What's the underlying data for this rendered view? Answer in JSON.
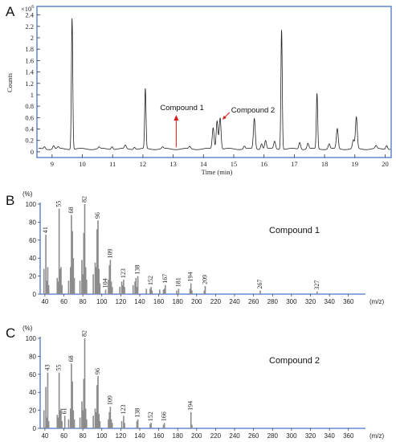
{
  "chart_data": [
    {
      "panel": "A",
      "type": "line",
      "multiplier": "×10",
      "multiplier_exp": "6",
      "xlabel": "Time (min)",
      "ylabel": "Counts",
      "xlim": [
        8.5,
        20.2
      ],
      "ylim": [
        -0.1,
        2.55
      ],
      "xticks": [
        "9",
        "10",
        "11",
        "12",
        "13",
        "14",
        "15",
        "16",
        "17",
        "18",
        "19",
        "20"
      ],
      "yticks": [
        "0",
        "0.2",
        "0.4",
        "0.6",
        "0.8",
        "1",
        "1.2",
        "1.4",
        "1.6",
        "1.8",
        "2",
        "2.2",
        "2.4"
      ],
      "baseline": 0.05,
      "peaks": [
        {
          "x": 8.75,
          "y": 0.09
        },
        {
          "x": 9.05,
          "y": 0.11
        },
        {
          "x": 9.2,
          "y": 0.08
        },
        {
          "x": 9.66,
          "y": 2.35
        },
        {
          "x": 10.55,
          "y": 0.08
        },
        {
          "x": 10.98,
          "y": 0.1
        },
        {
          "x": 11.42,
          "y": 0.11
        },
        {
          "x": 11.72,
          "y": 0.09
        },
        {
          "x": 12.08,
          "y": 1.1
        },
        {
          "x": 12.65,
          "y": 0.08
        },
        {
          "x": 13.55,
          "y": 0.09
        },
        {
          "x": 14.32,
          "y": 0.42
        },
        {
          "x": 14.45,
          "y": 0.55
        },
        {
          "x": 14.55,
          "y": 0.6
        },
        {
          "x": 15.35,
          "y": 0.1
        },
        {
          "x": 15.68,
          "y": 0.58
        },
        {
          "x": 15.92,
          "y": 0.15
        },
        {
          "x": 16.05,
          "y": 0.2
        },
        {
          "x": 16.35,
          "y": 0.18
        },
        {
          "x": 16.58,
          "y": 2.15
        },
        {
          "x": 17.18,
          "y": 0.17
        },
        {
          "x": 17.45,
          "y": 0.15
        },
        {
          "x": 17.75,
          "y": 1.02
        },
        {
          "x": 18.15,
          "y": 0.14
        },
        {
          "x": 18.42,
          "y": 0.4
        },
        {
          "x": 18.95,
          "y": 0.2
        },
        {
          "x": 19.05,
          "y": 0.6
        },
        {
          "x": 19.7,
          "y": 0.1
        },
        {
          "x": 20.05,
          "y": 0.12
        }
      ],
      "annotations": [
        {
          "text": "Compound 1",
          "x": 13.1,
          "y": 0.05
        },
        {
          "text": "Compound 2",
          "x": 14.65,
          "y": 0.55
        }
      ]
    },
    {
      "panel": "B",
      "type": "bar",
      "title": "Compound 1",
      "ylabel": "(%)",
      "xlabel": "(m/z)",
      "xlim": [
        35,
        378
      ],
      "ylim": [
        0,
        100
      ],
      "xticks": [
        "40",
        "60",
        "80",
        "100",
        "120",
        "140",
        "160",
        "180",
        "200",
        "220",
        "240",
        "260",
        "280",
        "300",
        "320",
        "340",
        "360"
      ],
      "yticks": [
        "0",
        "20",
        "40",
        "60",
        "80",
        "100"
      ],
      "mz": [
        39,
        41,
        42,
        43,
        44,
        53,
        54,
        55,
        56,
        57,
        58,
        65,
        67,
        68,
        69,
        70,
        71,
        77,
        79,
        80,
        81,
        82,
        83,
        84,
        91,
        93,
        94,
        95,
        96,
        97,
        98,
        104,
        107,
        108,
        109,
        110,
        111,
        119,
        121,
        122,
        123,
        124,
        133,
        135,
        136,
        137,
        138,
        147,
        151,
        152,
        153,
        161,
        165,
        166,
        167,
        179,
        181,
        193,
        194,
        195,
        208,
        209,
        267,
        327
      ],
      "intensity": [
        28,
        66,
        15,
        30,
        10,
        18,
        14,
        95,
        28,
        30,
        10,
        15,
        30,
        88,
        70,
        40,
        18,
        15,
        38,
        22,
        68,
        100,
        30,
        16,
        22,
        35,
        30,
        72,
        82,
        28,
        12,
        5,
        16,
        32,
        38,
        14,
        8,
        8,
        14,
        10,
        16,
        8,
        10,
        14,
        18,
        8,
        20,
        6,
        6,
        8,
        4,
        5,
        5,
        6,
        10,
        4,
        6,
        6,
        12,
        4,
        4,
        9,
        4,
        3
      ],
      "peak_labels": [
        {
          "mz": 41,
          "label": "41"
        },
        {
          "mz": 55,
          "label": "55"
        },
        {
          "mz": 68,
          "label": "68"
        },
        {
          "mz": 82,
          "label": "82"
        },
        {
          "mz": 96,
          "label": "96"
        },
        {
          "mz": 104,
          "label": "104"
        },
        {
          "mz": 109,
          "label": "109"
        },
        {
          "mz": 123,
          "label": "123"
        },
        {
          "mz": 138,
          "label": "138"
        },
        {
          "mz": 152,
          "label": "152"
        },
        {
          "mz": 167,
          "label": "167"
        },
        {
          "mz": 181,
          "label": "181"
        },
        {
          "mz": 194,
          "label": "194"
        },
        {
          "mz": 209,
          "label": "209"
        },
        {
          "mz": 267,
          "label": "267"
        },
        {
          "mz": 327,
          "label": "327"
        }
      ]
    },
    {
      "panel": "C",
      "type": "bar",
      "title": "Compound 2",
      "ylabel": "(%)",
      "xlabel": "(m/z)",
      "xlim": [
        35,
        378
      ],
      "ylim": [
        0,
        100
      ],
      "xticks": [
        "40",
        "60",
        "80",
        "100",
        "120",
        "140",
        "160",
        "180",
        "200",
        "220",
        "240",
        "260",
        "280",
        "300",
        "320",
        "340",
        "360"
      ],
      "yticks": [
        "0",
        "20",
        "40",
        "60",
        "80",
        "100"
      ],
      "mz": [
        39,
        41,
        42,
        43,
        44,
        53,
        54,
        55,
        56,
        57,
        58,
        61,
        65,
        67,
        68,
        69,
        70,
        71,
        77,
        79,
        80,
        81,
        82,
        83,
        84,
        91,
        93,
        94,
        95,
        96,
        97,
        98,
        107,
        108,
        109,
        110,
        111,
        121,
        123,
        124,
        137,
        138,
        151,
        152,
        165,
        166,
        194,
        195
      ],
      "intensity": [
        20,
        46,
        12,
        62,
        8,
        15,
        12,
        62,
        20,
        22,
        8,
        14,
        10,
        22,
        72,
        52,
        20,
        10,
        12,
        30,
        20,
        55,
        100,
        22,
        10,
        14,
        22,
        18,
        48,
        58,
        16,
        8,
        10,
        18,
        24,
        10,
        6,
        8,
        14,
        6,
        8,
        10,
        5,
        6,
        4,
        6,
        18,
        4
      ],
      "peak_labels": [
        {
          "mz": 43,
          "label": "43"
        },
        {
          "mz": 55,
          "label": "55"
        },
        {
          "mz": 61,
          "label": "61"
        },
        {
          "mz": 68,
          "label": "68"
        },
        {
          "mz": 82,
          "label": "82"
        },
        {
          "mz": 96,
          "label": "96"
        },
        {
          "mz": 109,
          "label": "109"
        },
        {
          "mz": 123,
          "label": "123"
        },
        {
          "mz": 138,
          "label": "138"
        },
        {
          "mz": 152,
          "label": "152"
        },
        {
          "mz": 166,
          "label": "166"
        },
        {
          "mz": 194,
          "label": "194"
        }
      ]
    }
  ]
}
